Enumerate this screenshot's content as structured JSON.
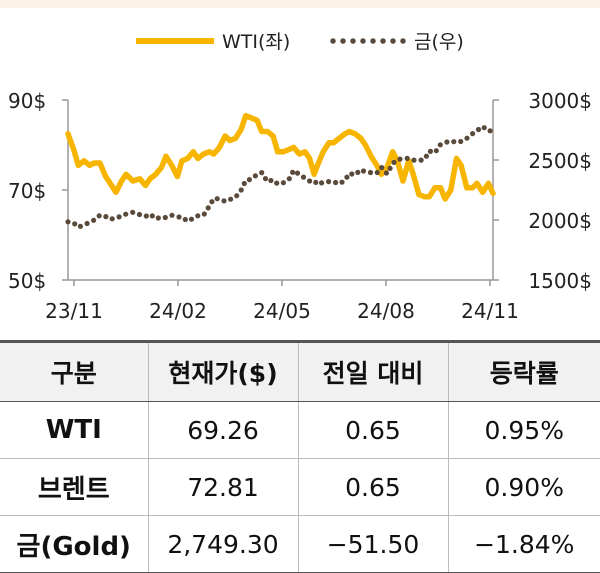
{
  "chart_data": {
    "type": "line",
    "x_ticks": [
      "23/11",
      "24/02",
      "24/05",
      "24/08",
      "24/11"
    ],
    "y_left": {
      "ticks": [
        "90$",
        "70$",
        "50$"
      ],
      "range": [
        50,
        90
      ]
    },
    "y_right": {
      "ticks": [
        "3000$",
        "2500$",
        "2000$",
        "1500$"
      ],
      "range": [
        1500,
        3000
      ]
    },
    "series": [
      {
        "name": "WTI(좌)",
        "axis": "left",
        "style": "solid",
        "color": "#f7b500",
        "values": [
          [
            "2023-11-01",
            82.5
          ],
          [
            "2023-11-06",
            79
          ],
          [
            "2023-11-10",
            75.5
          ],
          [
            "2023-11-15",
            76.5
          ],
          [
            "2023-11-20",
            75.5
          ],
          [
            "2023-11-24",
            76
          ],
          [
            "2023-11-29",
            76
          ],
          [
            "2023-12-04",
            73
          ],
          [
            "2023-12-08",
            71.5
          ],
          [
            "2023-12-13",
            69.5
          ],
          [
            "2023-12-18",
            72
          ],
          [
            "2023-12-22",
            73.5
          ],
          [
            "2023-12-28",
            72
          ],
          [
            "2024-01-03",
            72.5
          ],
          [
            "2024-01-08",
            71
          ],
          [
            "2024-01-12",
            72.5
          ],
          [
            "2024-01-17",
            73.5
          ],
          [
            "2024-01-22",
            75
          ],
          [
            "2024-01-26",
            77.5
          ],
          [
            "2024-01-31",
            75.5
          ],
          [
            "2024-02-05",
            73
          ],
          [
            "2024-02-09",
            76.5
          ],
          [
            "2024-02-14",
            77
          ],
          [
            "2024-02-19",
            78.5
          ],
          [
            "2024-02-23",
            77
          ],
          [
            "2024-02-28",
            78
          ],
          [
            "2024-03-04",
            78.5
          ],
          [
            "2024-03-08",
            78
          ],
          [
            "2024-03-13",
            79.5
          ],
          [
            "2024-03-18",
            82
          ],
          [
            "2024-03-22",
            81
          ],
          [
            "2024-03-27",
            81.5
          ],
          [
            "2024-04-01",
            83.5
          ],
          [
            "2024-04-05",
            86.5
          ],
          [
            "2024-04-10",
            86
          ],
          [
            "2024-04-15",
            85.5
          ],
          [
            "2024-04-19",
            83
          ],
          [
            "2024-04-24",
            83
          ],
          [
            "2024-04-29",
            82
          ],
          [
            "2024-05-03",
            78.5
          ],
          [
            "2024-05-08",
            78.5
          ],
          [
            "2024-05-13",
            79
          ],
          [
            "2024-05-17",
            79.5
          ],
          [
            "2024-05-22",
            78
          ],
          [
            "2024-05-27",
            78.5
          ],
          [
            "2024-05-31",
            77
          ],
          [
            "2024-06-04",
            73.5
          ],
          [
            "2024-06-07",
            75.5
          ],
          [
            "2024-06-12",
            78.5
          ],
          [
            "2024-06-17",
            80.5
          ],
          [
            "2024-06-21",
            80.5
          ],
          [
            "2024-06-26",
            81.5
          ],
          [
            "2024-07-01",
            82.5
          ],
          [
            "2024-07-05",
            83
          ],
          [
            "2024-07-10",
            82.5
          ],
          [
            "2024-07-15",
            81.5
          ],
          [
            "2024-07-19",
            80
          ],
          [
            "2024-07-24",
            77.5
          ],
          [
            "2024-07-29",
            75.5
          ],
          [
            "2024-08-02",
            73.5
          ],
          [
            "2024-08-07",
            75
          ],
          [
            "2024-08-12",
            78.5
          ],
          [
            "2024-08-16",
            76.5
          ],
          [
            "2024-08-21",
            72
          ],
          [
            "2024-08-26",
            76.5
          ],
          [
            "2024-08-30",
            73.5
          ],
          [
            "2024-09-04",
            69
          ],
          [
            "2024-09-09",
            68.5
          ],
          [
            "2024-09-13",
            68.5
          ],
          [
            "2024-09-18",
            70.5
          ],
          [
            "2024-09-23",
            70.5
          ],
          [
            "2024-09-27",
            68
          ],
          [
            "2024-10-02",
            70
          ],
          [
            "2024-10-07",
            77
          ],
          [
            "2024-10-11",
            75.5
          ],
          [
            "2024-10-16",
            70.5
          ],
          [
            "2024-10-21",
            70.5
          ],
          [
            "2024-10-25",
            71.5
          ],
          [
            "2024-10-30",
            69.5
          ],
          [
            "2024-11-04",
            71.5
          ],
          [
            "2024-11-08",
            69.26
          ]
        ]
      },
      {
        "name": "금(우)",
        "axis": "right",
        "style": "dotted",
        "color": "#5a4a3c",
        "values": [
          [
            "2023-11-01",
            1985
          ],
          [
            "2023-11-06",
            1975
          ],
          [
            "2023-11-10",
            1940
          ],
          [
            "2023-11-15",
            1960
          ],
          [
            "2023-11-20",
            1980
          ],
          [
            "2023-11-24",
            2000
          ],
          [
            "2023-11-29",
            2040
          ],
          [
            "2023-12-04",
            2030
          ],
          [
            "2023-12-08",
            2005
          ],
          [
            "2023-12-13",
            2020
          ],
          [
            "2023-12-18",
            2030
          ],
          [
            "2023-12-22",
            2050
          ],
          [
            "2023-12-28",
            2065
          ],
          [
            "2024-01-03",
            2045
          ],
          [
            "2024-01-08",
            2030
          ],
          [
            "2024-01-12",
            2050
          ],
          [
            "2024-01-17",
            2010
          ],
          [
            "2024-01-22",
            2025
          ],
          [
            "2024-01-26",
            2020
          ],
          [
            "2024-01-31",
            2040
          ],
          [
            "2024-02-05",
            2025
          ],
          [
            "2024-02-09",
            2025
          ],
          [
            "2024-02-14",
            1990
          ],
          [
            "2024-02-19",
            2015
          ],
          [
            "2024-02-23",
            2035
          ],
          [
            "2024-02-28",
            2040
          ],
          [
            "2024-03-04",
            2115
          ],
          [
            "2024-03-08",
            2180
          ],
          [
            "2024-03-13",
            2175
          ],
          [
            "2024-03-18",
            2155
          ],
          [
            "2024-03-22",
            2170
          ],
          [
            "2024-03-27",
            2190
          ],
          [
            "2024-04-01",
            2250
          ],
          [
            "2024-04-05",
            2330
          ],
          [
            "2024-04-10",
            2340
          ],
          [
            "2024-04-15",
            2380
          ],
          [
            "2024-04-19",
            2395
          ],
          [
            "2024-04-24",
            2320
          ],
          [
            "2024-04-29",
            2335
          ],
          [
            "2024-05-03",
            2300
          ],
          [
            "2024-05-08",
            2310
          ],
          [
            "2024-05-13",
            2340
          ],
          [
            "2024-05-17",
            2415
          ],
          [
            "2024-05-22",
            2380
          ],
          [
            "2024-05-27",
            2350
          ],
          [
            "2024-05-31",
            2325
          ],
          [
            "2024-06-04",
            2330
          ],
          [
            "2024-06-07",
            2295
          ],
          [
            "2024-06-12",
            2315
          ],
          [
            "2024-06-17",
            2320
          ],
          [
            "2024-06-21",
            2320
          ],
          [
            "2024-06-26",
            2300
          ],
          [
            "2024-07-01",
            2330
          ],
          [
            "2024-07-05",
            2390
          ],
          [
            "2024-07-10",
            2375
          ],
          [
            "2024-07-15",
            2420
          ],
          [
            "2024-07-19",
            2400
          ],
          [
            "2024-07-24",
            2395
          ],
          [
            "2024-07-29",
            2390
          ],
          [
            "2024-08-02",
            2440
          ],
          [
            "2024-08-07",
            2385
          ],
          [
            "2024-08-12",
            2470
          ],
          [
            "2024-08-16",
            2505
          ],
          [
            "2024-08-21",
            2510
          ],
          [
            "2024-08-26",
            2515
          ],
          [
            "2024-08-30",
            2500
          ],
          [
            "2024-09-04",
            2495
          ],
          [
            "2024-09-09",
            2505
          ],
          [
            "2024-09-13",
            2575
          ],
          [
            "2024-09-18",
            2560
          ],
          [
            "2024-09-23",
            2630
          ],
          [
            "2024-09-27",
            2645
          ],
          [
            "2024-10-02",
            2660
          ],
          [
            "2024-10-07",
            2645
          ],
          [
            "2024-10-11",
            2655
          ],
          [
            "2024-10-16",
            2680
          ],
          [
            "2024-10-21",
            2720
          ],
          [
            "2024-10-25",
            2745
          ],
          [
            "2024-10-30",
            2780
          ],
          [
            "2024-11-04",
            2740
          ],
          [
            "2024-11-08",
            2749.3
          ]
        ]
      }
    ]
  },
  "table": {
    "headers": [
      "구분",
      "현재가($)",
      "전일 대비",
      "등락률"
    ],
    "rows": [
      [
        "WTI",
        "69.26",
        "0.65",
        "0.95%"
      ],
      [
        "브렌트",
        "72.81",
        "0.65",
        "0.90%"
      ],
      [
        "금(Gold)",
        "2,749.30",
        "−51.50",
        "−1.84%"
      ]
    ]
  }
}
